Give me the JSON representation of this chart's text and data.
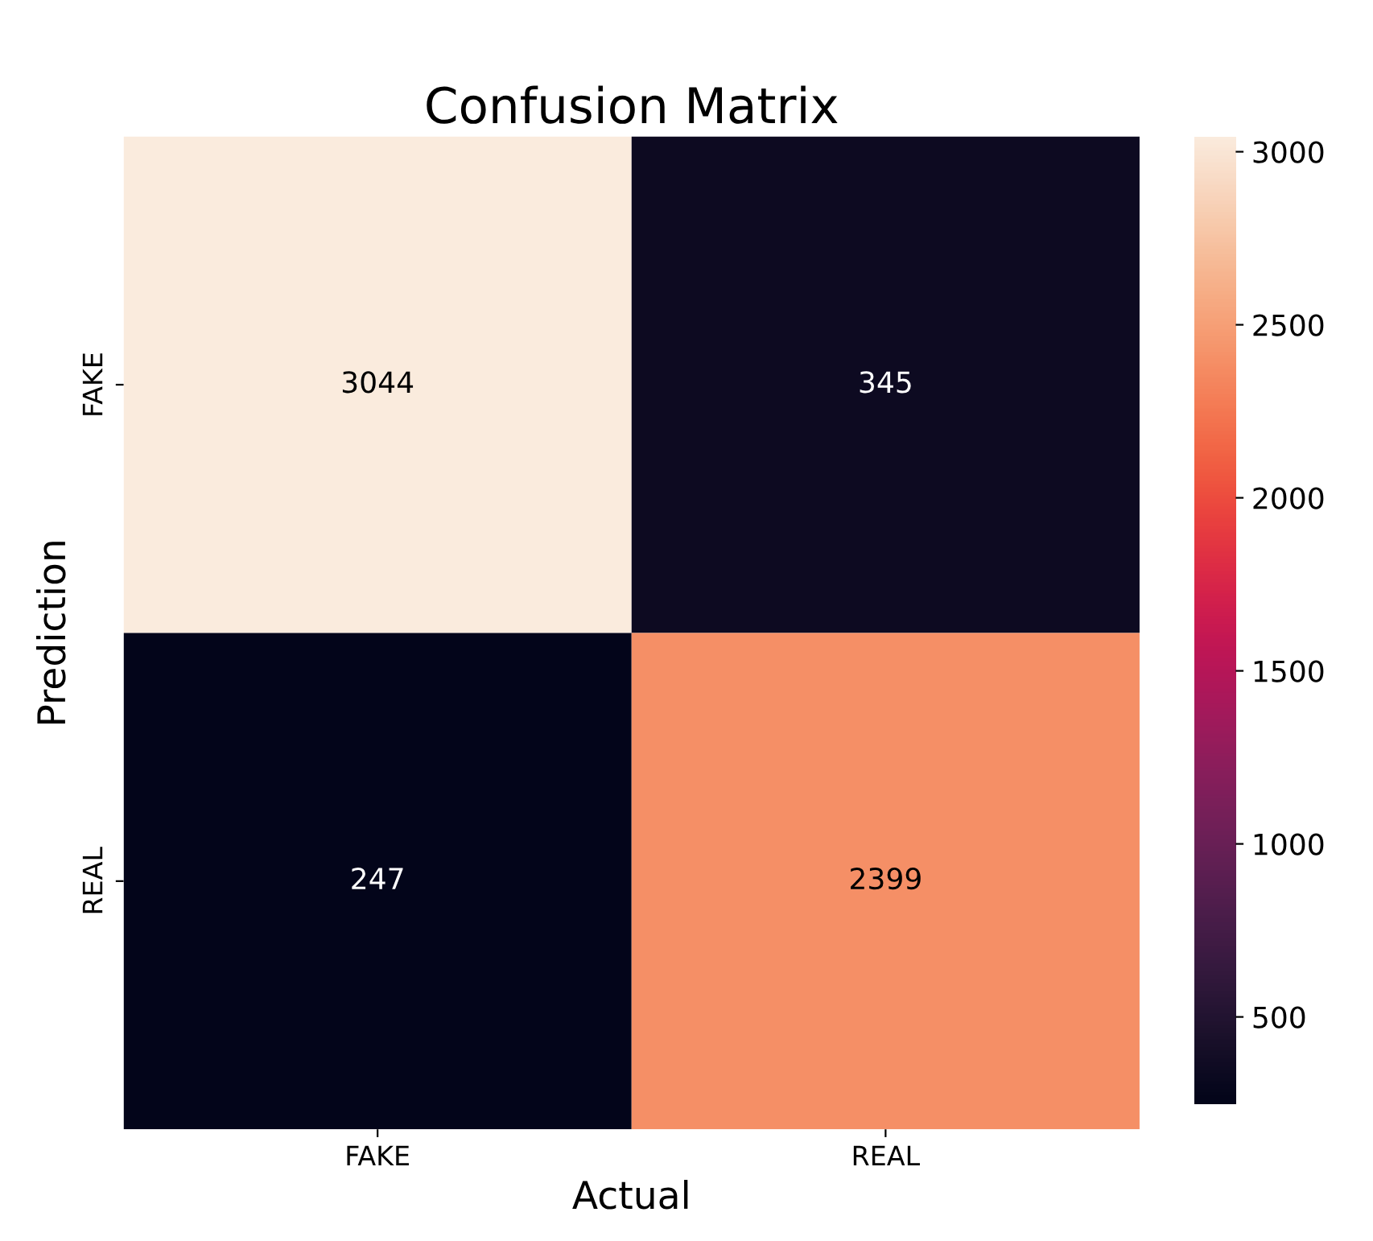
{
  "chart_data": {
    "type": "heatmap",
    "title": "Confusion Matrix",
    "xlabel": "Actual",
    "ylabel": "Prediction",
    "categories": [
      "FAKE",
      "REAL"
    ],
    "y_categories": [
      "FAKE",
      "REAL"
    ],
    "cells": [
      [
        3044,
        345
      ],
      [
        247,
        2399
      ]
    ],
    "clim": [
      247,
      3044
    ],
    "cticks": [
      500,
      1000,
      1500,
      2000,
      2500,
      3000
    ],
    "data_labels": true
  }
}
